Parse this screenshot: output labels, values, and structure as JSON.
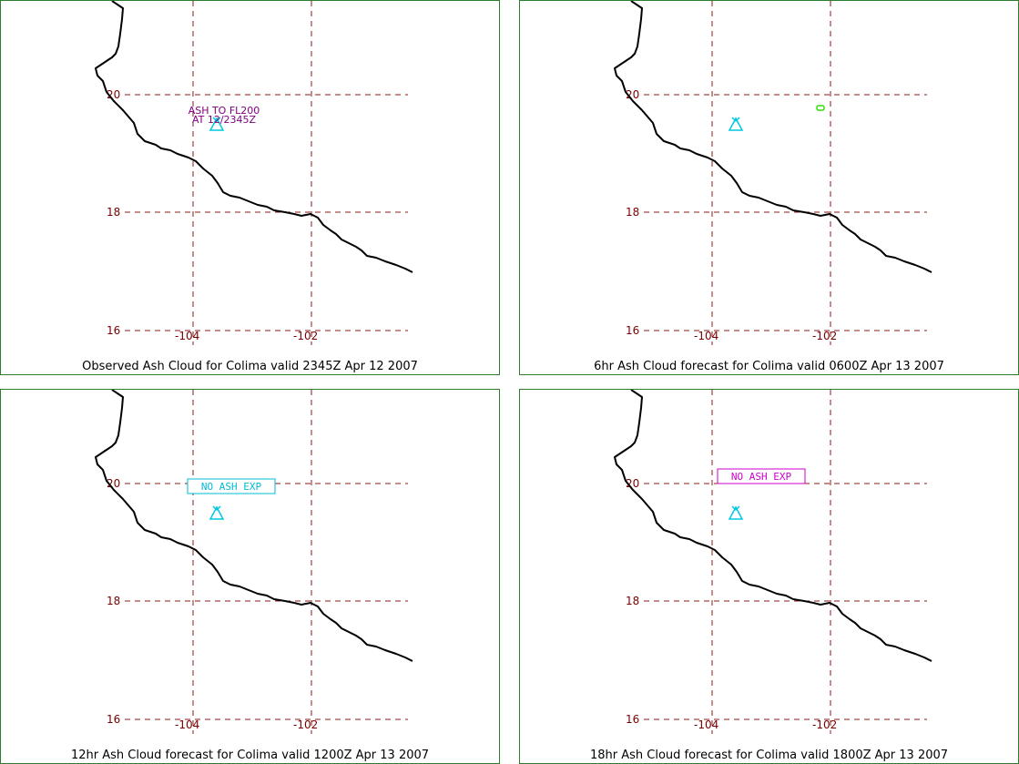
{
  "panels": [
    {
      "caption": "Observed Ash Cloud for Colima valid 2345Z Apr 12 2007",
      "annotation": {
        "kind": "text",
        "lines": [
          "ASH TO FL200",
          "AT 12/2345Z"
        ],
        "color": "#800080"
      },
      "ash_cloud": null
    },
    {
      "caption": "6hr Ash Cloud forecast for Colima valid 0600Z Apr 13 2007",
      "annotation": null,
      "ash_cloud": {
        "color": "#33dd00"
      }
    },
    {
      "caption": "12hr Ash Cloud forecast for Colima valid 1200Z Apr 13 2007",
      "annotation": {
        "kind": "box",
        "lines": [
          "NO ASH EXP"
        ],
        "color": "#00bcd4"
      },
      "ash_cloud": null
    },
    {
      "caption": "18hr Ash Cloud forecast for Colima valid 1800Z Apr 13 2007",
      "annotation": {
        "kind": "box",
        "lines": [
          "NO ASH EXP"
        ],
        "color": "#cc00cc"
      },
      "ash_cloud": null
    }
  ],
  "grid": {
    "lat_labels": [
      "20",
      "18",
      "16"
    ],
    "lon_labels": [
      "-104",
      "-102"
    ]
  },
  "colors": {
    "grid": "#8b1a1a",
    "labels": "#7a0000",
    "coastline": "#000000",
    "volcano_symbol": "#00c8e0",
    "panel_border": "#2e7d2e"
  },
  "icons": {
    "volcano": "volcano-triangle-icon"
  }
}
